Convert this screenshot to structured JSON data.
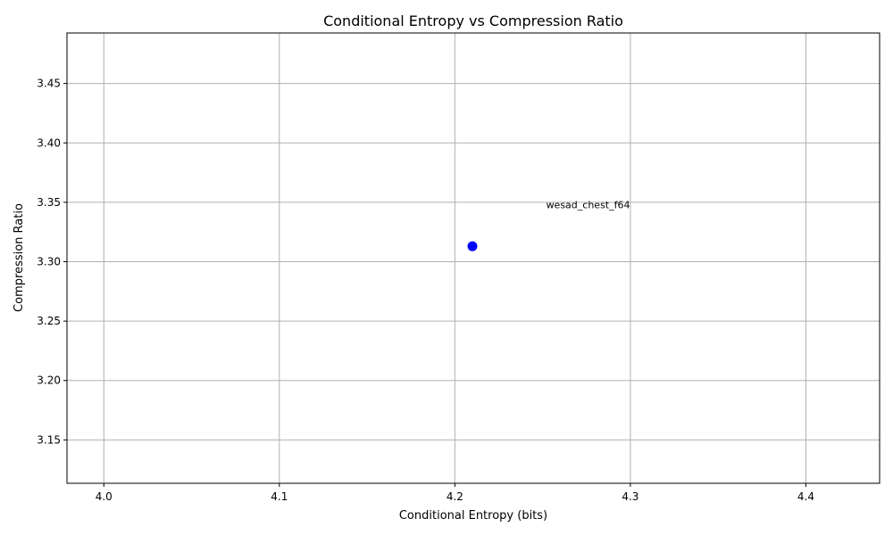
{
  "chart_data": {
    "type": "scatter",
    "title": "Conditional Entropy vs Compression Ratio",
    "xlabel": "Conditional Entropy (bits)",
    "ylabel": "Compression Ratio",
    "xlim": [
      3.979,
      4.442
    ],
    "ylim": [
      3.1135,
      3.4925
    ],
    "xticks": [
      "4.0",
      "4.1",
      "4.2",
      "4.3",
      "4.4"
    ],
    "yticks": [
      "3.15",
      "3.20",
      "3.25",
      "3.30",
      "3.35",
      "3.40",
      "3.45"
    ],
    "grid": true,
    "points": [
      {
        "x": 4.21,
        "y": 3.313,
        "color": "#0000ff"
      }
    ],
    "annotations": [
      {
        "text": "wesad_chest_f64",
        "x": 4.252,
        "y": 3.348
      }
    ]
  }
}
